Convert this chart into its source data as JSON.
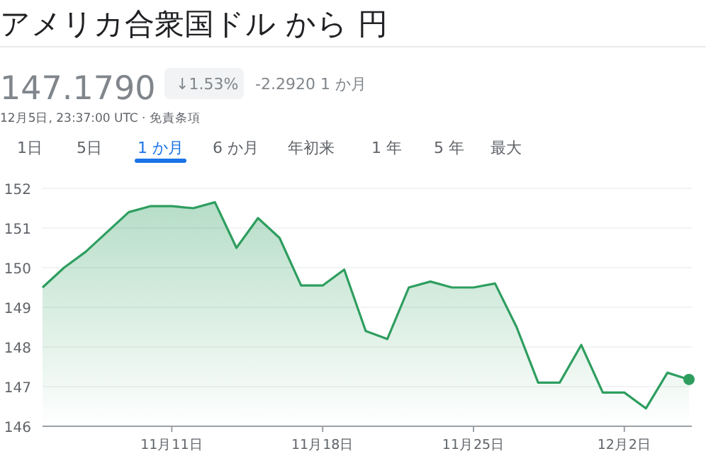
{
  "chart_data": {
    "type": "area",
    "title": "アメリカ合衆国ドル から 円",
    "annotations": [
      "147.1790",
      "↓1.53%",
      "-2.2920 1 か月",
      "12月5日, 23:37:00 UTC · 免責条項",
      "1日",
      "5日",
      "1 か月",
      "6 か月",
      "年初来",
      "1 年",
      "5 年",
      "最大"
    ],
    "x": [
      "--11-05",
      "--11-06",
      "--11-07",
      "--11-08",
      "--11-09",
      "--11-10",
      "--11-11",
      "--11-12",
      "--11-13",
      "--11-14",
      "--11-15",
      "--11-16",
      "--11-17",
      "--11-18",
      "--11-19",
      "--11-20",
      "--11-21",
      "--11-22",
      "--11-23",
      "--11-24",
      "--11-25",
      "--11-26",
      "--11-27",
      "--11-28",
      "--11-29",
      "--11-30",
      "--12-01",
      "--12-02",
      "--12-03",
      "--12-04",
      "--12-05"
    ],
    "series": [
      {
        "color": "#2e9e5f",
        "values": [
          149.5,
          150.0,
          150.4,
          150.9,
          151.4,
          151.55,
          151.55,
          151.5,
          151.65,
          150.5,
          151.25,
          150.75,
          149.55,
          149.55,
          149.95,
          148.4,
          148.2,
          149.5,
          149.65,
          149.5,
          149.5,
          149.6,
          148.5,
          147.1,
          147.1,
          148.05,
          146.85,
          146.85,
          146.45,
          147.35,
          147.18
        ]
      }
    ],
    "xlim": [
      "--11-05",
      "--12-05"
    ],
    "xticks": [
      {
        "value": "--11-11",
        "label": "11月11日"
      },
      {
        "value": "--11-18",
        "label": "11月18日"
      },
      {
        "value": "--11-25",
        "label": "11月25日"
      },
      {
        "value": "--12-02",
        "label": "12月2日"
      }
    ],
    "ylim": [
      146,
      152
    ],
    "yticks": [
      146,
      147,
      148,
      149,
      150,
      151,
      152
    ],
    "grid": "y"
  }
}
